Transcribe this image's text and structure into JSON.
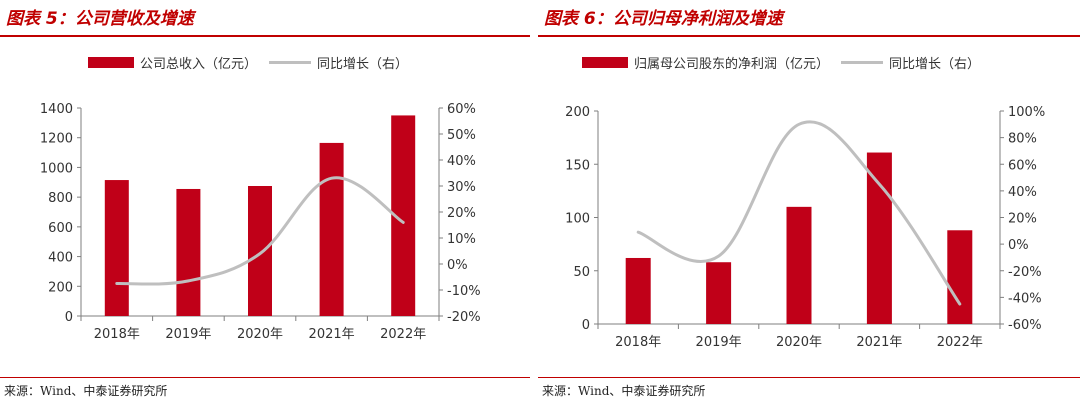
{
  "colors": {
    "accent": "#c00000",
    "bar": "#c00018",
    "line": "#bfbfbf",
    "axis": "#7f7f7f"
  },
  "figures": [
    {
      "title": "图表 5：公司营收及增速",
      "source": "来源：Wind、中泰证券研究所",
      "legend_bar": "公司总收入（亿元）",
      "legend_line": "同比增长（右）"
    },
    {
      "title": "图表 6：公司归母净利润及增速",
      "source": "来源：Wind、中泰证券研究所",
      "legend_bar": "归属母公司股东的净利润（亿元）",
      "legend_line": "同比增长（右）"
    }
  ],
  "chart_data": [
    {
      "type": "bar",
      "categories": [
        "2018年",
        "2019年",
        "2020年",
        "2021年",
        "2022年"
      ],
      "series": [
        {
          "name": "公司总收入（亿元）",
          "type": "bar",
          "axis": "left",
          "values": [
            915,
            855,
            875,
            1165,
            1350
          ]
        },
        {
          "name": "同比增长（右）",
          "type": "line",
          "axis": "right",
          "values": [
            -7.5,
            -6.5,
            4,
            33,
            16
          ]
        }
      ],
      "ylim": [
        0,
        1400
      ],
      "y_ticks": [
        "0",
        "200",
        "400",
        "600",
        "800",
        "1000",
        "1200",
        "1400"
      ],
      "y2lim": [
        -20,
        60
      ],
      "y2_ticks": [
        "-20%",
        "-10%",
        "0%",
        "10%",
        "20%",
        "30%",
        "40%",
        "50%",
        "60%"
      ],
      "legend_position": "top",
      "grid": false
    },
    {
      "type": "bar",
      "categories": [
        "2018年",
        "2019年",
        "2020年",
        "2021年",
        "2022年"
      ],
      "series": [
        {
          "name": "归属母公司股东的净利润（亿元）",
          "type": "bar",
          "axis": "left",
          "values": [
            62,
            58,
            110,
            161,
            88
          ]
        },
        {
          "name": "同比增长（右）",
          "type": "line",
          "axis": "right",
          "values": [
            9,
            -9,
            90,
            45,
            -45
          ]
        }
      ],
      "ylim": [
        0,
        200
      ],
      "y_ticks": [
        "0",
        "50",
        "100",
        "150",
        "200"
      ],
      "y2lim": [
        -60,
        100
      ],
      "y2_ticks": [
        "-60%",
        "-40%",
        "-20%",
        "0%",
        "20%",
        "40%",
        "60%",
        "80%",
        "100%"
      ],
      "legend_position": "top",
      "grid": false
    }
  ]
}
